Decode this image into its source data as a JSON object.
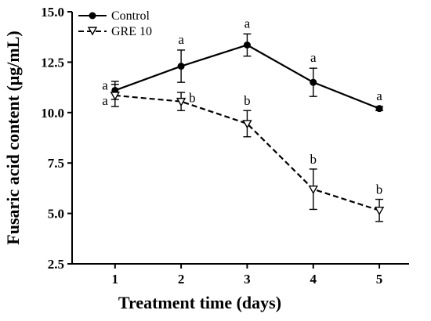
{
  "chart_data": {
    "type": "line",
    "xlabel": "Treatment time (days)",
    "ylabel": "Fusaric acid content (μg/mL)",
    "x": [
      1,
      2,
      3,
      4,
      5
    ],
    "x_tick_labels": [
      "1",
      "2",
      "3",
      "4",
      "5"
    ],
    "xlim": [
      0.35,
      5.45
    ],
    "ylim": [
      2.5,
      15.0
    ],
    "y_ticks": [
      2.5,
      5.0,
      7.5,
      10.0,
      12.5,
      15.0
    ],
    "y_tick_labels": [
      "2.5",
      "5.0",
      "7.5",
      "10.0",
      "12.5",
      "15.0"
    ],
    "grid": false,
    "legend_position": "top-left",
    "series": [
      {
        "name": "Control",
        "values": [
          11.1,
          12.3,
          13.35,
          11.5,
          10.2
        ],
        "errors": [
          0.45,
          0.8,
          0.55,
          0.7,
          0.1
        ],
        "marker": "filled-circle",
        "line_style": "solid",
        "color": "#000000",
        "sig_labels": [
          "a",
          "a",
          "a",
          "a",
          "a"
        ]
      },
      {
        "name": "GRE 10",
        "values": [
          10.85,
          10.55,
          9.45,
          6.2,
          5.15
        ],
        "errors": [
          0.55,
          0.45,
          0.65,
          1.0,
          0.55
        ],
        "marker": "open-triangle-down",
        "line_style": "dashed",
        "color": "#000000",
        "sig_labels": [
          "a",
          "b",
          "b",
          "b",
          "b"
        ]
      }
    ]
  }
}
